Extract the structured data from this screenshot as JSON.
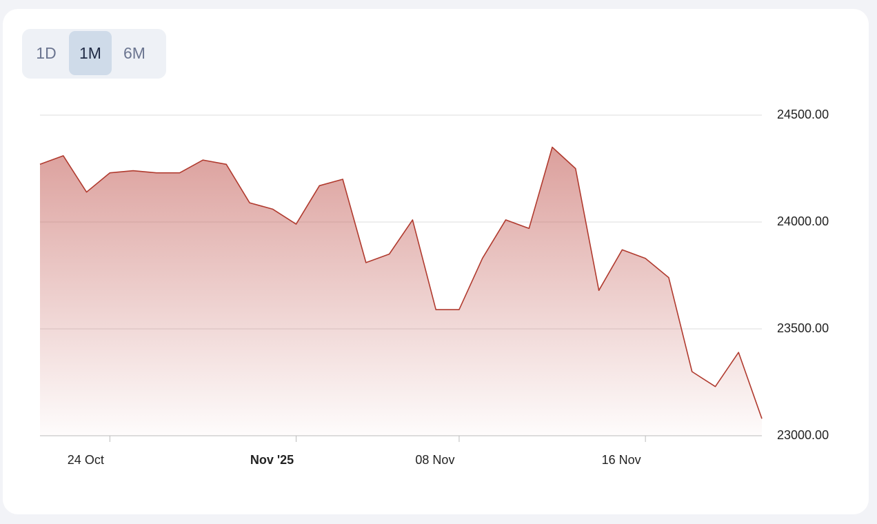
{
  "controls": {
    "buttons": [
      "1D",
      "1M",
      "6M"
    ],
    "selected": "1M"
  },
  "chart_data": {
    "type": "area",
    "x": [
      "2025-10-21",
      "2025-10-22",
      "2025-10-23",
      "2025-10-24",
      "2025-10-25",
      "2025-10-26",
      "2025-10-27",
      "2025-10-28",
      "2025-10-29",
      "2025-10-30",
      "2025-10-31",
      "2025-11-01",
      "2025-11-02",
      "2025-11-03",
      "2025-11-04",
      "2025-11-05",
      "2025-11-06",
      "2025-11-07",
      "2025-11-08",
      "2025-11-09",
      "2025-11-10",
      "2025-11-11",
      "2025-11-12",
      "2025-11-13",
      "2025-11-14",
      "2025-11-15",
      "2025-11-16",
      "2025-11-17",
      "2025-11-18",
      "2025-11-19",
      "2025-11-20",
      "2025-11-21"
    ],
    "values": [
      24270,
      24310,
      24140,
      24230,
      24240,
      24230,
      24230,
      24290,
      24270,
      24090,
      24060,
      23990,
      24170,
      24200,
      23810,
      23850,
      24010,
      23590,
      23590,
      23830,
      24010,
      23970,
      24350,
      24250,
      23680,
      23870,
      23830,
      23740,
      23300,
      23230,
      23390,
      23080
    ],
    "color": "#b03a2e",
    "xlim": [
      "2025-10-21",
      "2025-11-21"
    ],
    "xticks": [
      {
        "value": "2025-10-24",
        "label": "24 Oct"
      },
      {
        "value": "2025-11-01",
        "label": "Nov '25",
        "bold": true
      },
      {
        "value": "2025-11-08",
        "label": "08 Nov"
      },
      {
        "value": "2025-11-16",
        "label": "16 Nov"
      }
    ],
    "ylim": [
      23000,
      24500
    ],
    "yticks": [
      {
        "value": 23000,
        "label": "23000.00"
      },
      {
        "value": 23500,
        "label": "23500.00"
      },
      {
        "value": 24000,
        "label": "24000.00"
      },
      {
        "value": 24500,
        "label": "24500.00"
      }
    ],
    "grid": true
  }
}
